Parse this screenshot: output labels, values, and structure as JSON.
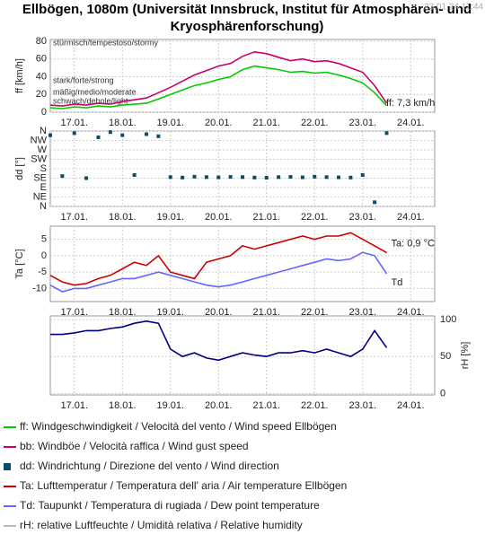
{
  "title_lines": [
    "Ellbögen, 1080m (Universität Innsbruck, Institut für Atmosphären- und",
    "Kryosphärenforschung)"
  ],
  "timestamp": "23.01.24 11:44",
  "chart_data": [
    {
      "type": "line",
      "ylabel": "ff [km/h]",
      "ylim": [
        0,
        82
      ],
      "yticks": [
        0,
        20,
        40,
        60,
        80
      ],
      "grid": true,
      "xlim": [
        16.5,
        24.5
      ],
      "xticks": [
        {
          "value": 17,
          "label": "17.01."
        },
        {
          "value": 18,
          "label": "18.01."
        },
        {
          "value": 19,
          "label": "19.01."
        },
        {
          "value": 20,
          "label": "20.01."
        },
        {
          "value": 21,
          "label": "21.01."
        },
        {
          "value": 22,
          "label": "22.01."
        },
        {
          "value": 23,
          "label": "23.01."
        },
        {
          "value": 24,
          "label": "24.01."
        }
      ],
      "x": [
        16.5,
        16.75,
        17,
        17.25,
        17.5,
        17.75,
        18,
        18.25,
        18.5,
        18.75,
        19,
        19.25,
        19.5,
        19.75,
        20,
        20.25,
        20.5,
        20.75,
        21,
        21.25,
        21.5,
        21.75,
        22,
        22.25,
        22.5,
        22.75,
        23,
        23.25,
        23.5
      ],
      "band_labels": [
        "stürmisch/tempestoso/stormy",
        "stark/forte/strong",
        "mäßig/medio/moderate",
        "schwach/debole/light"
      ],
      "annotation": "ff: 7,3 km/h",
      "series": [
        {
          "name": "bb: Windböe / Velocità raffica / Wind gust speed",
          "color": "#cc0066",
          "values": [
            8,
            7,
            9,
            8,
            10,
            9,
            12,
            14,
            16,
            22,
            28,
            35,
            42,
            47,
            52,
            55,
            63,
            68,
            66,
            62,
            58,
            60,
            57,
            58,
            55,
            50,
            45,
            30,
            10
          ]
        },
        {
          "name": "ff: Windgeschwindigkeit / Velocità del vento / Wind speed  Ellbögen",
          "color": "#00cc00",
          "values": [
            5,
            4,
            6,
            5,
            7,
            6,
            8,
            9,
            10,
            15,
            20,
            25,
            30,
            33,
            37,
            40,
            48,
            52,
            50,
            48,
            45,
            46,
            44,
            45,
            42,
            38,
            33,
            22,
            7.3
          ]
        }
      ]
    },
    {
      "type": "scatter",
      "ylabel": "dd [°]",
      "ylim": [
        0,
        360
      ],
      "grid": true,
      "yticks": [
        {
          "value": 0,
          "label": "N"
        },
        {
          "value": 45,
          "label": "NE"
        },
        {
          "value": 90,
          "label": "E"
        },
        {
          "value": 135,
          "label": "SE"
        },
        {
          "value": 180,
          "label": "S"
        },
        {
          "value": 225,
          "label": "SW"
        },
        {
          "value": 270,
          "label": "W"
        },
        {
          "value": 315,
          "label": "NW"
        },
        {
          "value": 360,
          "label": "N"
        }
      ],
      "xlim": [
        16.5,
        24.5
      ],
      "xticks": [
        {
          "value": 17,
          "label": "17.01."
        },
        {
          "value": 18,
          "label": "18.01."
        },
        {
          "value": 19,
          "label": "19.01."
        },
        {
          "value": 20,
          "label": "20.01."
        },
        {
          "value": 21,
          "label": "21.01."
        },
        {
          "value": 22,
          "label": "22.01."
        },
        {
          "value": 23,
          "label": "23.01."
        },
        {
          "value": 24,
          "label": "24.01."
        }
      ],
      "x": [
        16.5,
        16.75,
        17,
        17.25,
        17.5,
        17.75,
        18,
        18.25,
        18.5,
        18.75,
        19,
        19.25,
        19.5,
        19.75,
        20,
        20.25,
        20.5,
        20.75,
        21,
        21.25,
        21.5,
        21.75,
        22,
        22.25,
        22.5,
        22.75,
        23,
        23.25,
        23.5
      ],
      "series": [
        {
          "name": "dd: Windrichtung / Direzione del vento / Wind direction",
          "color": "#0d4d66",
          "values": [
            340,
            145,
            350,
            135,
            330,
            355,
            340,
            150,
            345,
            335,
            140,
            138,
            142,
            140,
            139,
            141,
            140,
            138,
            137,
            140,
            141,
            139,
            142,
            140,
            139,
            138,
            150,
            20,
            350
          ]
        }
      ]
    },
    {
      "type": "line",
      "ylabel": "Ta [°C]",
      "ylim": [
        -14,
        9
      ],
      "yticks": [
        5,
        0,
        -5,
        -10
      ],
      "grid": true,
      "xlim": [
        16.5,
        24.5
      ],
      "xticks": [
        {
          "value": 17,
          "label": "17.01."
        },
        {
          "value": 18,
          "label": "18.01."
        },
        {
          "value": 19,
          "label": "19.01."
        },
        {
          "value": 20,
          "label": "20.01."
        },
        {
          "value": 21,
          "label": "21.01."
        },
        {
          "value": 22,
          "label": "22.01."
        },
        {
          "value": 23,
          "label": "23.01."
        },
        {
          "value": 24,
          "label": "24.01."
        }
      ],
      "x": [
        16.5,
        16.75,
        17,
        17.25,
        17.5,
        17.75,
        18,
        18.25,
        18.5,
        18.75,
        19,
        19.25,
        19.5,
        19.75,
        20,
        20.25,
        20.5,
        20.75,
        21,
        21.25,
        21.5,
        21.75,
        22,
        22.25,
        22.5,
        22.75,
        23,
        23.25,
        23.5
      ],
      "annotations": [
        "Ta: 0,9 °C",
        "Td"
      ],
      "series": [
        {
          "name": "Ta: Lufttemperatur / Temperatura dell' aria / Air temperature  Ellbögen",
          "color": "#cc0000",
          "values": [
            -6,
            -8,
            -9,
            -8.5,
            -7,
            -6,
            -4,
            -2,
            -3,
            0,
            -5,
            -6,
            -7,
            -2,
            -1,
            0,
            3,
            2,
            3,
            4,
            5,
            6,
            5,
            6,
            6,
            7,
            5,
            3,
            0.9
          ]
        },
        {
          "name": "Td: Taupunkt / Temperatura di rugiada / Dew point temperature",
          "color": "#6666ff",
          "values": [
            -9,
            -11,
            -10,
            -10,
            -9,
            -8,
            -7,
            -7,
            -6,
            -5,
            -6,
            -7,
            -8,
            -9,
            -9.5,
            -9,
            -8,
            -7,
            -6,
            -5,
            -4,
            -3,
            -2,
            -1,
            -1.5,
            -1,
            1,
            0,
            -5.5
          ]
        }
      ]
    },
    {
      "type": "line",
      "ylabel": "rH [%]",
      "y_axis": "right",
      "ylim": [
        -2,
        105
      ],
      "yticks": [
        0,
        50,
        100
      ],
      "grid": true,
      "xlim": [
        16.5,
        24.5
      ],
      "xticks": [
        {
          "value": 17,
          "label": "17.01."
        },
        {
          "value": 18,
          "label": "18.01."
        },
        {
          "value": 19,
          "label": "19.01."
        },
        {
          "value": 20,
          "label": "20.01."
        },
        {
          "value": 21,
          "label": "21.01."
        },
        {
          "value": 22,
          "label": "22.01."
        },
        {
          "value": 23,
          "label": "23.01."
        },
        {
          "value": 24,
          "label": "24.01."
        }
      ],
      "x": [
        16.5,
        16.75,
        17,
        17.25,
        17.5,
        17.75,
        18,
        18.25,
        18.5,
        18.75,
        19,
        19.25,
        19.5,
        19.75,
        20,
        20.25,
        20.5,
        20.75,
        21,
        21.25,
        21.5,
        21.75,
        22,
        22.25,
        22.5,
        22.75,
        23,
        23.25,
        23.5
      ],
      "series": [
        {
          "name": "rH: relative Luftfeuchte / Umidità relativa / Relative humidity",
          "color": "#000080",
          "legend_color": "#bbbbbb",
          "values": [
            80,
            80,
            82,
            85,
            85,
            88,
            90,
            95,
            98,
            95,
            60,
            50,
            55,
            48,
            45,
            50,
            55,
            52,
            50,
            55,
            55,
            58,
            55,
            60,
            55,
            50,
            60,
            85,
            62
          ]
        }
      ]
    }
  ]
}
